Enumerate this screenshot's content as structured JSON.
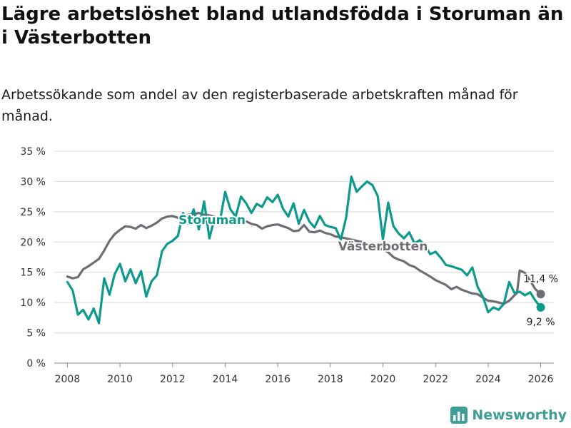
{
  "title": "Lägre arbetslöshet bland utlandsfödda i Storuman än i Västerbotten",
  "subtitle": "Arbetssökande som andel av den registerbaserade arbetskraften månad för månad.",
  "brand": {
    "name": "Newsworthy",
    "icon": "newsworthy-logo-icon"
  },
  "colors": {
    "storuman": "#0d9a8c",
    "vasterbotten": "#6f6c73",
    "grid": "#d9d9d9",
    "brand": "#3d9e96"
  },
  "chart_data": {
    "type": "line",
    "title": "Lägre arbetslöshet bland utlandsfödda i Storuman än i Västerbotten",
    "xlabel": "",
    "ylabel": "",
    "xlim": [
      2007.5,
      2026.5
    ],
    "ylim": [
      0,
      35
    ],
    "grid": "horizontal",
    "y_ticks": [
      0,
      5,
      10,
      15,
      20,
      25,
      30,
      35
    ],
    "y_tick_labels": [
      "0 %",
      "5 %",
      "10 %",
      "15 %",
      "20 %",
      "25 %",
      "30 %",
      "35 %"
    ],
    "x_ticks": [
      2008,
      2010,
      2012,
      2014,
      2016,
      2018,
      2020,
      2022,
      2024,
      2026
    ],
    "x_tick_labels": [
      "2008",
      "2010",
      "2012",
      "2014",
      "2016",
      "2018",
      "2020",
      "2022",
      "2024",
      "2026"
    ],
    "series": [
      {
        "name": "Västerbotten",
        "label": "Västerbotten",
        "end_label": "11,4 %",
        "x": [
          2008.0,
          2008.2,
          2008.4,
          2008.6,
          2008.8,
          2009.0,
          2009.2,
          2009.4,
          2009.6,
          2009.8,
          2010.0,
          2010.2,
          2010.4,
          2010.6,
          2010.8,
          2011.0,
          2011.2,
          2011.4,
          2011.6,
          2011.8,
          2012.0,
          2012.2,
          2012.4,
          2012.6,
          2012.8,
          2013.0,
          2013.2,
          2013.4,
          2013.6,
          2013.8,
          2014.0,
          2014.2,
          2014.4,
          2014.6,
          2014.8,
          2015.0,
          2015.2,
          2015.4,
          2015.6,
          2015.8,
          2016.0,
          2016.2,
          2016.4,
          2016.6,
          2016.8,
          2017.0,
          2017.2,
          2017.4,
          2017.6,
          2017.8,
          2018.0,
          2018.2,
          2018.4,
          2018.6,
          2018.8,
          2019.0,
          2019.2,
          2019.4,
          2019.6,
          2019.8,
          2020.0,
          2020.2,
          2020.4,
          2020.6,
          2020.8,
          2021.0,
          2021.2,
          2021.4,
          2021.6,
          2021.8,
          2022.0,
          2022.2,
          2022.4,
          2022.6,
          2022.8,
          2023.0,
          2023.2,
          2023.4,
          2023.6,
          2023.8,
          2024.0,
          2024.2,
          2024.4,
          2024.6,
          2024.8,
          2025.0,
          2025.1,
          2025.2,
          2025.4,
          2025.6,
          2025.8,
          2026.0
        ],
        "values": [
          14.3,
          14.0,
          14.2,
          15.5,
          16.0,
          16.6,
          17.2,
          18.6,
          20.2,
          21.3,
          22.0,
          22.6,
          22.5,
          22.2,
          22.8,
          22.3,
          22.7,
          23.2,
          23.9,
          24.2,
          24.3,
          24.0,
          24.2,
          24.5,
          24.6,
          24.8,
          24.5,
          24.4,
          24.2,
          23.9,
          23.4,
          23.1,
          23.6,
          23.1,
          23.4,
          23.0,
          22.8,
          22.2,
          22.6,
          22.8,
          22.9,
          22.6,
          22.3,
          21.8,
          21.9,
          22.8,
          21.7,
          21.6,
          21.9,
          21.5,
          21.3,
          20.9,
          20.8,
          20.6,
          20.4,
          20.2,
          20.0,
          19.7,
          19.2,
          18.9,
          18.8,
          18.3,
          17.5,
          17.1,
          16.8,
          16.2,
          15.9,
          15.3,
          14.8,
          14.3,
          13.7,
          13.3,
          12.9,
          12.2,
          12.6,
          12.1,
          11.8,
          11.5,
          11.4,
          10.8,
          10.3,
          10.2,
          10.0,
          9.8,
          10.3,
          11.2,
          11.6,
          15.3,
          14.9,
          13.6,
          12.2,
          11.4
        ]
      },
      {
        "name": "Storuman",
        "label": "Storuman",
        "end_label": "9,2 %",
        "x": [
          2008.0,
          2008.2,
          2008.4,
          2008.6,
          2008.8,
          2009.0,
          2009.2,
          2009.4,
          2009.6,
          2009.8,
          2010.0,
          2010.2,
          2010.4,
          2010.6,
          2010.8,
          2011.0,
          2011.2,
          2011.4,
          2011.6,
          2011.8,
          2012.0,
          2012.2,
          2012.4,
          2012.6,
          2012.8,
          2013.0,
          2013.2,
          2013.4,
          2013.6,
          2013.8,
          2014.0,
          2014.2,
          2014.4,
          2014.6,
          2014.8,
          2015.0,
          2015.2,
          2015.4,
          2015.6,
          2015.8,
          2016.0,
          2016.2,
          2016.4,
          2016.6,
          2016.8,
          2017.0,
          2017.2,
          2017.4,
          2017.6,
          2017.8,
          2018.0,
          2018.2,
          2018.4,
          2018.6,
          2018.8,
          2019.0,
          2019.2,
          2019.4,
          2019.6,
          2019.8,
          2020.0,
          2020.2,
          2020.4,
          2020.6,
          2020.8,
          2021.0,
          2021.2,
          2021.4,
          2021.6,
          2021.8,
          2022.0,
          2022.2,
          2022.4,
          2022.6,
          2022.8,
          2023.0,
          2023.2,
          2023.4,
          2023.6,
          2023.8,
          2024.0,
          2024.2,
          2024.4,
          2024.6,
          2024.8,
          2025.0,
          2025.2,
          2025.4,
          2025.6,
          2025.8,
          2026.0
        ],
        "values": [
          13.4,
          12.0,
          8.0,
          8.8,
          7.2,
          9.0,
          6.6,
          14.0,
          11.3,
          14.7,
          16.4,
          13.5,
          15.5,
          13.2,
          15.2,
          11.0,
          13.5,
          14.5,
          18.5,
          19.7,
          20.2,
          21.0,
          24.8,
          23.0,
          25.4,
          22.1,
          26.7,
          20.6,
          24.0,
          23.4,
          28.3,
          25.4,
          24.2,
          27.5,
          26.4,
          24.8,
          26.3,
          25.8,
          27.4,
          26.6,
          27.8,
          25.5,
          24.2,
          26.4,
          23.0,
          25.3,
          23.4,
          22.4,
          24.3,
          22.8,
          22.5,
          22.3,
          20.4,
          24.0,
          30.8,
          28.3,
          29.2,
          30.0,
          29.4,
          27.6,
          20.4,
          26.5,
          22.6,
          21.4,
          20.6,
          21.6,
          19.8,
          20.3,
          19.4,
          18.0,
          18.4,
          17.4,
          16.2,
          16.0,
          15.7,
          15.4,
          14.5,
          15.8,
          12.6,
          11.0,
          8.4,
          9.2,
          8.8,
          9.8,
          13.4,
          11.6,
          11.8,
          11.2,
          11.7,
          10.3,
          9.2
        ]
      }
    ]
  }
}
